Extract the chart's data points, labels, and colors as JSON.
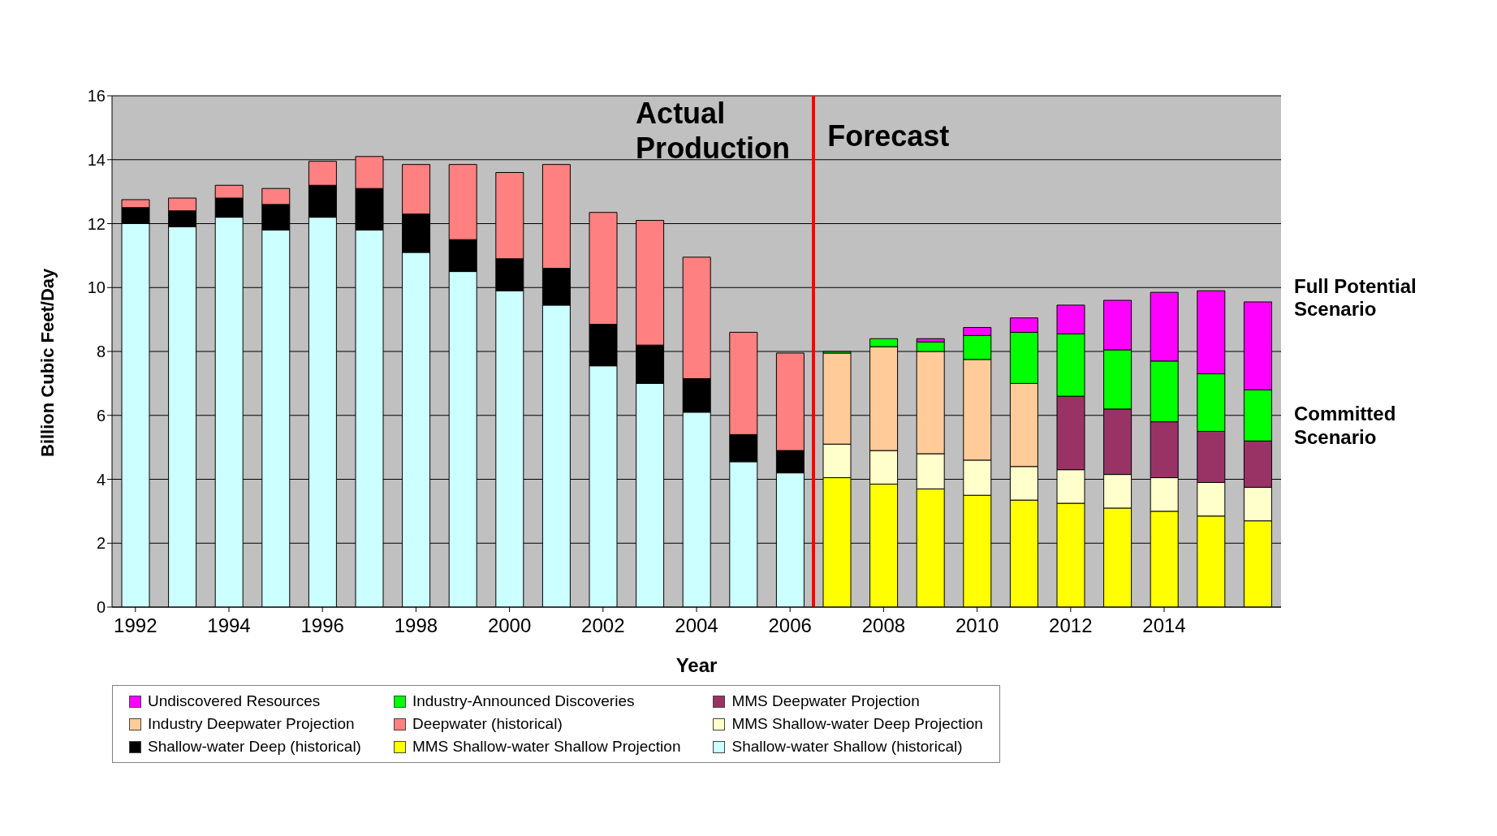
{
  "chart_data": {
    "type": "bar",
    "stacked": true,
    "xlabel": "Year",
    "ylabel": "Billion Cubic Feet/Day",
    "x": [
      1992,
      1993,
      1994,
      1995,
      1996,
      1997,
      1998,
      1999,
      2000,
      2001,
      2002,
      2003,
      2004,
      2005,
      2006,
      2007,
      2008,
      2009,
      2010,
      2011,
      2012,
      2013,
      2014,
      2015,
      2016
    ],
    "xlim": [
      1991.5,
      2016.5
    ],
    "xticks": [
      1992,
      1994,
      1996,
      1998,
      2000,
      2002,
      2004,
      2006,
      2008,
      2010,
      2012,
      2014
    ],
    "ylim": [
      0,
      16
    ],
    "yticks": [
      0,
      2,
      4,
      6,
      8,
      10,
      12,
      14,
      16
    ],
    "grid": "y",
    "legend": "bottom",
    "series": [
      {
        "name": "Shallow-water Shallow  (historical)",
        "color": "#ccffff",
        "values": [
          12.0,
          11.9,
          12.2,
          11.8,
          12.2,
          11.8,
          11.1,
          10.5,
          9.9,
          9.45,
          7.55,
          7.0,
          6.1,
          4.55,
          4.2,
          null,
          null,
          null,
          null,
          null,
          null,
          null,
          null,
          null,
          null
        ]
      },
      {
        "name": "MMS Shallow-water Shallow  Projection",
        "color": "#ffff00",
        "values": [
          null,
          null,
          null,
          null,
          null,
          null,
          null,
          null,
          null,
          null,
          null,
          null,
          null,
          null,
          null,
          4.05,
          3.85,
          3.7,
          3.5,
          3.35,
          3.25,
          3.1,
          3.0,
          2.85,
          2.7
        ]
      },
      {
        "name": "Shallow-water Deep (historical)",
        "color": "#000000",
        "values": [
          0.5,
          0.5,
          0.6,
          0.8,
          1.0,
          1.3,
          1.2,
          1.0,
          1.0,
          1.15,
          1.3,
          1.2,
          1.05,
          0.85,
          0.7,
          null,
          null,
          null,
          null,
          null,
          null,
          null,
          null,
          null,
          null
        ]
      },
      {
        "name": "MMS Shallow-water Deep Projection",
        "color": "#ffffcc",
        "values": [
          null,
          null,
          null,
          null,
          null,
          null,
          null,
          null,
          null,
          null,
          null,
          null,
          null,
          null,
          null,
          1.05,
          1.05,
          1.1,
          1.1,
          1.05,
          1.05,
          1.05,
          1.05,
          1.05,
          1.05
        ]
      },
      {
        "name": "Deepwater (historical)",
        "color": "#ff8080",
        "values": [
          0.25,
          0.4,
          0.4,
          0.5,
          0.75,
          1.0,
          1.55,
          2.35,
          2.7,
          3.25,
          3.5,
          3.9,
          3.8,
          3.2,
          3.05,
          null,
          null,
          null,
          null,
          null,
          null,
          null,
          null,
          null,
          null
        ]
      },
      {
        "name": "Industry Deepwater Projection",
        "color": "#ffcc99",
        "values": [
          null,
          null,
          null,
          null,
          null,
          null,
          null,
          null,
          null,
          null,
          null,
          null,
          null,
          null,
          null,
          2.85,
          3.25,
          3.2,
          3.15,
          2.6,
          null,
          null,
          null,
          null,
          null
        ]
      },
      {
        "name": "MMS Deepwater Projection",
        "color": "#993366",
        "values": [
          null,
          null,
          null,
          null,
          null,
          null,
          null,
          null,
          null,
          null,
          null,
          null,
          null,
          null,
          null,
          null,
          null,
          null,
          null,
          null,
          2.3,
          2.05,
          1.75,
          1.6,
          1.45
        ]
      },
      {
        "name": "Industry-Announced Discoveries",
        "color": "#00ff00",
        "values": [
          null,
          null,
          null,
          null,
          null,
          null,
          null,
          null,
          null,
          null,
          null,
          null,
          null,
          null,
          null,
          0.05,
          0.25,
          0.3,
          0.75,
          1.6,
          1.95,
          1.85,
          1.9,
          1.8,
          1.6
        ]
      },
      {
        "name": "Undiscovered Resources",
        "color": "#ff00ff",
        "values": [
          null,
          null,
          null,
          null,
          null,
          null,
          null,
          null,
          null,
          null,
          null,
          null,
          null,
          null,
          null,
          null,
          null,
          0.1,
          0.25,
          0.45,
          0.9,
          1.55,
          2.15,
          2.6,
          2.75
        ]
      }
    ],
    "ref_lines": [
      {
        "axis": "x",
        "value": 2006.5,
        "color": "#ff0000"
      }
    ],
    "annotations": [
      "Actual Production",
      "Forecast",
      "Full Potential Scenario",
      "Committed Scenario"
    ]
  }
}
